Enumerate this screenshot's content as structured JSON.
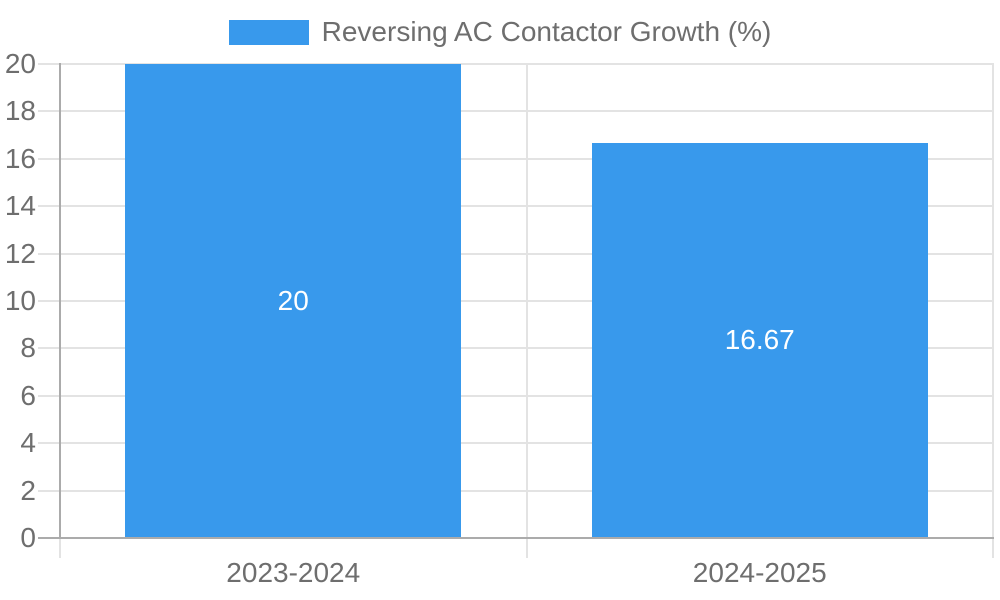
{
  "legend": {
    "label": "Reversing AC Contactor Growth (%)"
  },
  "chart_data": {
    "type": "bar",
    "title": "Reversing AC Contactor Growth (%)",
    "categories": [
      "2023-2024",
      "2024-2025"
    ],
    "values": [
      20,
      16.67
    ],
    "value_labels": [
      "20",
      "16.67"
    ],
    "series": [
      {
        "name": "Reversing AC Contactor Growth (%)",
        "values": [
          20,
          16.67
        ]
      }
    ],
    "ylim": [
      0,
      20
    ],
    "yticks": [
      0,
      2,
      4,
      6,
      8,
      10,
      12,
      14,
      16,
      18,
      20
    ],
    "xlabel": "",
    "ylabel": "",
    "grid": true,
    "legend_position": "top-center",
    "colors": {
      "bar": "#3899EC",
      "value_label": "#FFFFFF",
      "grid": "#E3E3E3",
      "axis": "#ABABAB",
      "tick_label": "#6E6E6E",
      "legend_label": "#6E6E6E",
      "background": "#FFFFFF"
    }
  }
}
